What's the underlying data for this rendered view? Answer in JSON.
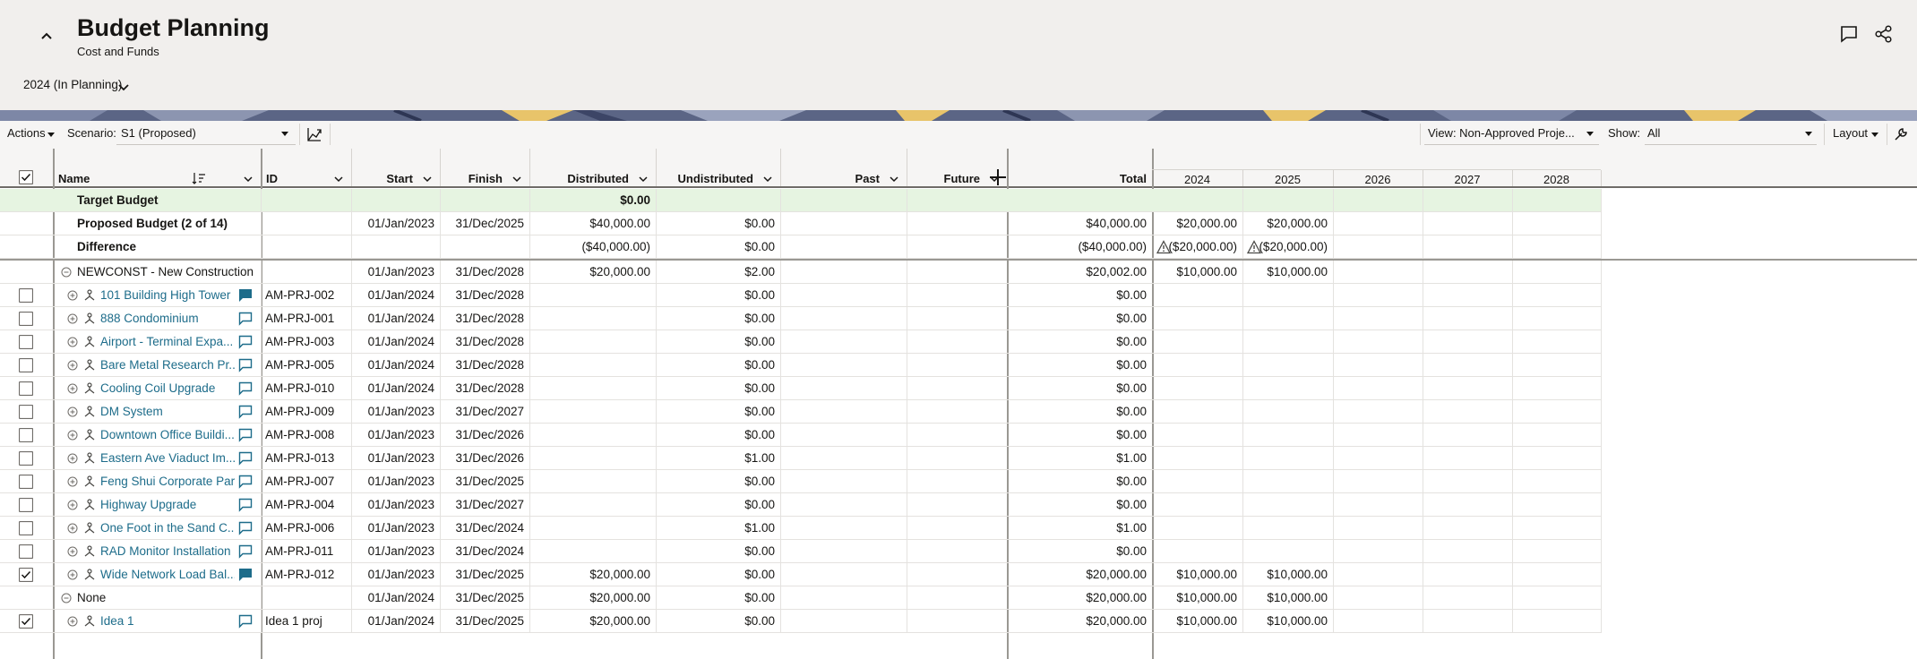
{
  "header": {
    "title": "Budget Planning",
    "subtitle": "Cost and Funds",
    "period": "2024 (In Planning)"
  },
  "toolbar": {
    "actions": "Actions",
    "scenario_label": "Scenario:",
    "scenario": "S1 (Proposed)",
    "view": "View: Non-Approved Proje...",
    "show_label": "Show:",
    "show": "All",
    "layout": "Layout"
  },
  "table": {
    "columns": [
      "Name",
      "ID",
      "Start",
      "Finish",
      "Distributed",
      "Undistributed",
      "Past",
      "Future",
      "Total"
    ],
    "years": [
      "2024",
      "2025",
      "2026",
      "2027",
      "2028"
    ],
    "rows": [
      {
        "kind": "summary",
        "highlight": true,
        "name": "Target Budget",
        "distributed": "$0.00"
      },
      {
        "kind": "summary",
        "name": "Proposed Budget (2 of 14)",
        "start": "01/Jan/2023",
        "finish": "31/Dec/2025",
        "distributed": "$40,000.00",
        "undistributed": "$0.00",
        "total": "$40,000.00",
        "years": [
          "$20,000.00",
          "$20,000.00"
        ]
      },
      {
        "kind": "summary",
        "warning": true,
        "name": "Difference",
        "distributed": "($40,000.00)",
        "undistributed": "$0.00",
        "total": "($40,000.00)",
        "years": [
          "($20,000.00)",
          "($20,000.00)"
        ]
      },
      {
        "kind": "group",
        "name": "NEWCONST - New Construction",
        "start": "01/Jan/2023",
        "finish": "31/Dec/2028",
        "distributed": "$20,000.00",
        "undistributed": "$2.00",
        "total": "$20,002.00",
        "years": [
          "$10,000.00",
          "$10,000.00"
        ]
      },
      {
        "kind": "project",
        "comment_filled": true,
        "name": "101 Building High Tower",
        "id": "AM-PRJ-002",
        "start": "01/Jan/2024",
        "finish": "31/Dec/2028",
        "undistributed": "$0.00",
        "total": "$0.00"
      },
      {
        "kind": "project",
        "name": "888 Condominium",
        "id": "AM-PRJ-001",
        "start": "01/Jan/2024",
        "finish": "31/Dec/2028",
        "undistributed": "$0.00",
        "total": "$0.00"
      },
      {
        "kind": "project",
        "name": "Airport - Terminal Expa...",
        "id": "AM-PRJ-003",
        "start": "01/Jan/2024",
        "finish": "31/Dec/2028",
        "undistributed": "$0.00",
        "total": "$0.00"
      },
      {
        "kind": "project",
        "name": "Bare Metal Research Pr...",
        "id": "AM-PRJ-005",
        "start": "01/Jan/2024",
        "finish": "31/Dec/2028",
        "undistributed": "$0.00",
        "total": "$0.00"
      },
      {
        "kind": "project",
        "name": "Cooling Coil Upgrade",
        "id": "AM-PRJ-010",
        "start": "01/Jan/2024",
        "finish": "31/Dec/2028",
        "undistributed": "$0.00",
        "total": "$0.00"
      },
      {
        "kind": "project",
        "name": "DM System",
        "id": "AM-PRJ-009",
        "start": "01/Jan/2023",
        "finish": "31/Dec/2027",
        "undistributed": "$0.00",
        "total": "$0.00"
      },
      {
        "kind": "project",
        "name": "Downtown Office Buildi...",
        "id": "AM-PRJ-008",
        "start": "01/Jan/2023",
        "finish": "31/Dec/2026",
        "undistributed": "$0.00",
        "total": "$0.00"
      },
      {
        "kind": "project",
        "name": "Eastern Ave Viaduct Im...",
        "id": "AM-PRJ-013",
        "start": "01/Jan/2023",
        "finish": "31/Dec/2026",
        "undistributed": "$1.00",
        "total": "$1.00"
      },
      {
        "kind": "project",
        "name": "Feng Shui Corporate Park",
        "id": "AM-PRJ-007",
        "start": "01/Jan/2023",
        "finish": "31/Dec/2025",
        "undistributed": "$0.00",
        "total": "$0.00"
      },
      {
        "kind": "project",
        "name": "Highway Upgrade",
        "id": "AM-PRJ-004",
        "start": "01/Jan/2023",
        "finish": "31/Dec/2027",
        "undistributed": "$0.00",
        "total": "$0.00"
      },
      {
        "kind": "project",
        "name": "One Foot in the Sand C...",
        "id": "AM-PRJ-006",
        "start": "01/Jan/2023",
        "finish": "31/Dec/2024",
        "undistributed": "$1.00",
        "total": "$1.00"
      },
      {
        "kind": "project",
        "name": "RAD Monitor Installation",
        "id": "AM-PRJ-011",
        "start": "01/Jan/2023",
        "finish": "31/Dec/2024",
        "undistributed": "$0.00",
        "total": "$0.00"
      },
      {
        "kind": "project",
        "checked": true,
        "comment_filled": true,
        "name": "Wide Network Load Bal...",
        "id": "AM-PRJ-012",
        "start": "01/Jan/2023",
        "finish": "31/Dec/2025",
        "distributed": "$20,000.00",
        "undistributed": "$0.00",
        "total": "$20,000.00",
        "years": [
          "$10,000.00",
          "$10,000.00"
        ]
      },
      {
        "kind": "group",
        "name": "None",
        "start": "01/Jan/2024",
        "finish": "31/Dec/2025",
        "distributed": "$20,000.00",
        "undistributed": "$0.00",
        "total": "$20,000.00",
        "years": [
          "$10,000.00",
          "$10,000.00"
        ]
      },
      {
        "kind": "project",
        "checked": true,
        "name": "Idea 1",
        "id": "Idea 1 proj",
        "start": "01/Jan/2024",
        "finish": "31/Dec/2025",
        "distributed": "$20,000.00",
        "undistributed": "$0.00",
        "total": "$20,000.00",
        "years": [
          "$10,000.00",
          "$10,000.00"
        ]
      }
    ]
  }
}
